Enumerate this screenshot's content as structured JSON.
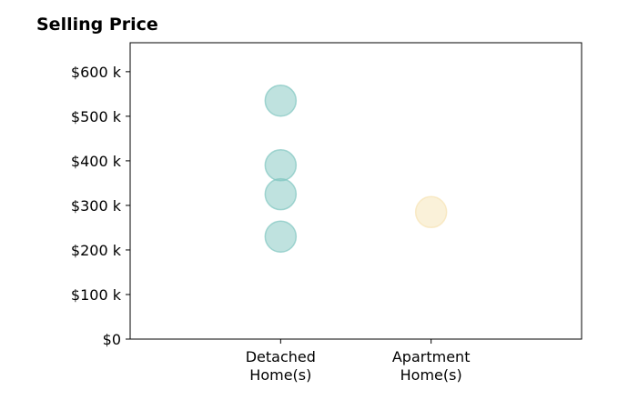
{
  "chart_data": {
    "type": "scatter",
    "title": "Selling Price",
    "xlabel": "",
    "ylabel": "",
    "categories": [
      "Detached\nHome(s)",
      "Apartment\nHome(s)"
    ],
    "series": [
      {
        "category": "Detached\nHome(s)",
        "color": "#80c6c0",
        "values": [
          535000,
          390000,
          325000,
          230000
        ]
      },
      {
        "category": "Apartment\nHome(s)",
        "color": "#f6e3b3",
        "values": [
          285000
        ]
      }
    ],
    "yticks": [
      0,
      100000,
      200000,
      300000,
      400000,
      500000,
      600000
    ],
    "ytick_labels": [
      "$0",
      "$100 k",
      "$200 k",
      "$300 k",
      "$400 k",
      "$500 k",
      "$600 k"
    ],
    "ylim": [
      0,
      665000
    ],
    "xlim": [
      0,
      3
    ],
    "grid": false
  }
}
